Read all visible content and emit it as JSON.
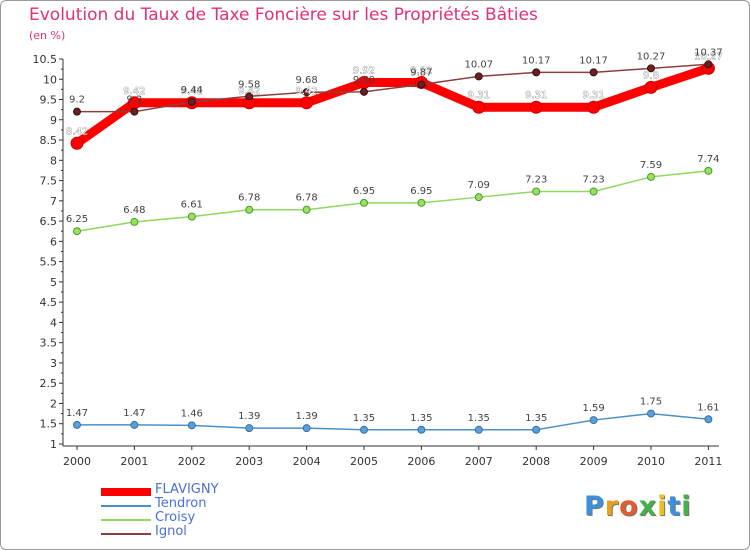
{
  "title": "Evolution du Taux de Taxe Foncière sur les Propriétés Bâties",
  "unit": "(en %)",
  "brand": {
    "text": "Proxiti",
    "colors": [
      "#3d8fd8",
      "#e8a020",
      "#e25c2e",
      "#46b04a",
      "#e8c020",
      "#3d8fd8",
      "#46b04a"
    ]
  },
  "chart_data": {
    "type": "line",
    "x": [
      "2000",
      "2001",
      "2002",
      "2003",
      "2004",
      "2005",
      "2006",
      "2007",
      "2008",
      "2009",
      "2010",
      "2011"
    ],
    "y_ticks": [
      "1",
      "1.5",
      "2",
      "2.5",
      "3",
      "3.5",
      "4",
      "4.5",
      "5",
      "5.5",
      "6",
      "6.5",
      "7",
      "7.5",
      "8",
      "8.5",
      "9",
      "9.5",
      "10",
      "10.5"
    ],
    "ylim": [
      0.95,
      10.5
    ],
    "grid": false,
    "legend_position": "bottom-left",
    "series": [
      {
        "name": "FLAVIGNY",
        "color": "#ff0000",
        "values": [
          8.42,
          9.42,
          9.42,
          9.42,
          9.42,
          9.92,
          9.92,
          9.31,
          9.31,
          9.31,
          9.8,
          10.27
        ],
        "labels": [
          "8.42",
          "9.42",
          "9.42",
          "9.42",
          "9.42",
          "9.92",
          "9.92",
          "9.31",
          "9.31",
          "9.31",
          "9.8",
          "10.27"
        ]
      },
      {
        "name": "Tendron",
        "color": "#4a90c8",
        "values": [
          1.47,
          1.47,
          1.46,
          1.39,
          1.39,
          1.35,
          1.35,
          1.35,
          1.35,
          1.59,
          1.75,
          1.61
        ],
        "labels": [
          "1.47",
          "1.47",
          "1.46",
          "1.39",
          "1.39",
          "1.35",
          "1.35",
          "1.35",
          "1.35",
          "1.59",
          "1.75",
          "1.61"
        ]
      },
      {
        "name": "Croisy",
        "color": "#90d860",
        "values": [
          6.25,
          6.48,
          6.61,
          6.78,
          6.78,
          6.95,
          6.95,
          7.09,
          7.23,
          7.23,
          7.59,
          7.74
        ],
        "labels": [
          "6.25",
          "6.48",
          "6.61",
          "6.78",
          "6.78",
          "6.95",
          "6.95",
          "7.09",
          "7.23",
          "7.23",
          "7.59",
          "7.74"
        ]
      },
      {
        "name": "Ignol",
        "color": "#8a4040",
        "values": [
          9.2,
          9.2,
          9.44,
          9.58,
          9.68,
          9.69,
          9.87,
          10.07,
          10.17,
          10.17,
          10.27,
          10.37
        ],
        "labels": [
          "9.2",
          "9.2",
          "9.44",
          "9.58",
          "9.68",
          "9.69",
          "9.87",
          "10.07",
          "10.17",
          "10.17",
          "10.27",
          "10.37"
        ]
      }
    ]
  }
}
